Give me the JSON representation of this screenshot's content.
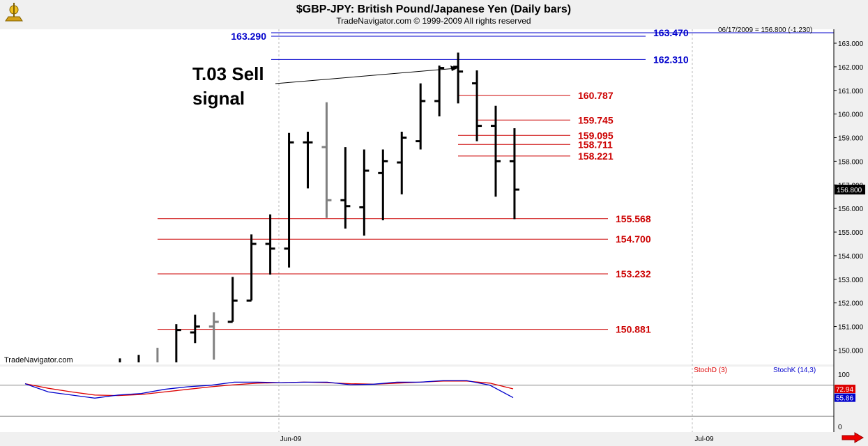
{
  "header": {
    "title": "$GBP-JPY:  British Pound/Japanese Yen  (Daily bars)",
    "subtitle": "TradeNavigator.com © 1999-2009 All rights reserved",
    "last_readout": "06/17/2009 = 156.800 (-1.230)"
  },
  "watermark": "TradeNavigator.com",
  "annotation": {
    "line1": "T.03 Sell",
    "line2": "signal"
  },
  "colors": {
    "background": "#ffffff",
    "frame": "#f0f0f0",
    "bars": "#000000",
    "gray_bars": "#808080",
    "support_line": "#cc0000",
    "resistance_line": "#0000cc",
    "stochD": "#dd0000",
    "stochK": "#0000cc"
  },
  "chart_data": [
    {
      "type": "ohlc",
      "y_range": [
        149.3,
        163.4
      ],
      "y_ticks": [
        "150.000",
        "151.000",
        "152.000",
        "153.000",
        "154.000",
        "155.000",
        "156.000",
        "157.000",
        "158.000",
        "159.000",
        "160.000",
        "161.000",
        "162.000",
        "163.000"
      ],
      "x_ticks": [
        "Jun-09",
        "Jul-09"
      ],
      "last_price_label": "156.800",
      "bars": [
        {
          "high": 149.65,
          "low": 149.3,
          "open": 149.4,
          "close": 149.4,
          "color": "black"
        },
        {
          "high": 149.8,
          "low": 149.3,
          "open": 149.45,
          "close": 149.45,
          "color": "black"
        },
        {
          "high": 150.1,
          "low": 149.3,
          "open": 149.45,
          "close": 149.45,
          "color": "gray"
        },
        {
          "high": 151.1,
          "low": 149.4,
          "open": 149.45,
          "close": 150.85,
          "color": "black"
        },
        {
          "high": 151.5,
          "low": 150.3,
          "open": 150.75,
          "close": 151.0,
          "color": "black"
        },
        {
          "high": 151.6,
          "low": 149.6,
          "open": 151.0,
          "close": 151.2,
          "color": "gray"
        },
        {
          "high": 153.1,
          "low": 151.2,
          "open": 151.2,
          "close": 152.1,
          "color": "black"
        },
        {
          "high": 154.9,
          "low": 152.1,
          "open": 152.1,
          "close": 154.5,
          "color": "black"
        },
        {
          "high": 155.75,
          "low": 153.2,
          "open": 154.5,
          "close": 154.3,
          "color": "black"
        },
        {
          "high": 159.2,
          "low": 153.5,
          "open": 154.3,
          "close": 158.8,
          "color": "black"
        },
        {
          "high": 159.25,
          "low": 156.85,
          "open": 158.8,
          "close": 158.8,
          "color": "black"
        },
        {
          "high": 160.5,
          "low": 155.6,
          "open": 158.6,
          "close": 156.35,
          "color": "gray"
        },
        {
          "high": 158.6,
          "low": 155.15,
          "open": 156.35,
          "close": 156.1,
          "color": "black"
        },
        {
          "high": 158.5,
          "low": 154.85,
          "open": 156.05,
          "close": 157.6,
          "color": "black"
        },
        {
          "high": 158.5,
          "low": 155.5,
          "open": 157.5,
          "close": 158.0,
          "color": "black"
        },
        {
          "high": 159.25,
          "low": 156.6,
          "open": 157.95,
          "close": 159.0,
          "color": "black"
        },
        {
          "high": 161.3,
          "low": 158.5,
          "open": 158.85,
          "close": 160.55,
          "color": "black"
        },
        {
          "high": 162.05,
          "low": 159.9,
          "open": 160.55,
          "close": 161.95,
          "color": "black"
        },
        {
          "high": 162.6,
          "low": 160.45,
          "open": 162.0,
          "close": 161.8,
          "color": "black"
        },
        {
          "high": 161.85,
          "low": 158.85,
          "open": 161.3,
          "close": 159.5,
          "color": "black"
        },
        {
          "high": 160.35,
          "low": 156.5,
          "open": 159.5,
          "close": 158.0,
          "color": "black"
        },
        {
          "high": 159.4,
          "low": 155.55,
          "open": 158.0,
          "close": 156.8,
          "color": "black"
        }
      ],
      "levels": [
        {
          "label": "163.470",
          "value": 163.47,
          "kind": "resistance"
        },
        {
          "label": "163.290",
          "value": 163.29,
          "kind": "resistance"
        },
        {
          "label": "162.310",
          "value": 162.31,
          "kind": "resistance"
        },
        {
          "label": "160.787",
          "value": 160.787,
          "kind": "support"
        },
        {
          "label": "159.745",
          "value": 159.745,
          "kind": "support"
        },
        {
          "label": "159.095",
          "value": 159.095,
          "kind": "support"
        },
        {
          "label": "158.711",
          "value": 158.711,
          "kind": "support"
        },
        {
          "label": "158.221",
          "value": 158.221,
          "kind": "support"
        },
        {
          "label": "155.568",
          "value": 155.568,
          "kind": "support"
        },
        {
          "label": "154.700",
          "value": 154.7,
          "kind": "support"
        },
        {
          "label": "153.232",
          "value": 153.232,
          "kind": "support"
        },
        {
          "label": "150.881",
          "value": 150.881,
          "kind": "support"
        }
      ]
    },
    {
      "type": "line",
      "y_range": [
        0,
        100
      ],
      "y_ticks": [
        "100",
        "0"
      ],
      "series": [
        {
          "name": "StochD (3)",
          "last_label": "72.94",
          "values": [
            83,
            74,
            67,
            61,
            60,
            62,
            67,
            72,
            77,
            81,
            84,
            85,
            86,
            85,
            83,
            82,
            84,
            86,
            88,
            88,
            84,
            73
          ]
        },
        {
          "name": "StochK (14,3)",
          "last_label": "55.86",
          "values": [
            83,
            67,
            61,
            55,
            61,
            64,
            72,
            77,
            80,
            86,
            86,
            85,
            86,
            86,
            81,
            82,
            86,
            86,
            89,
            89,
            80,
            56
          ]
        }
      ]
    }
  ]
}
